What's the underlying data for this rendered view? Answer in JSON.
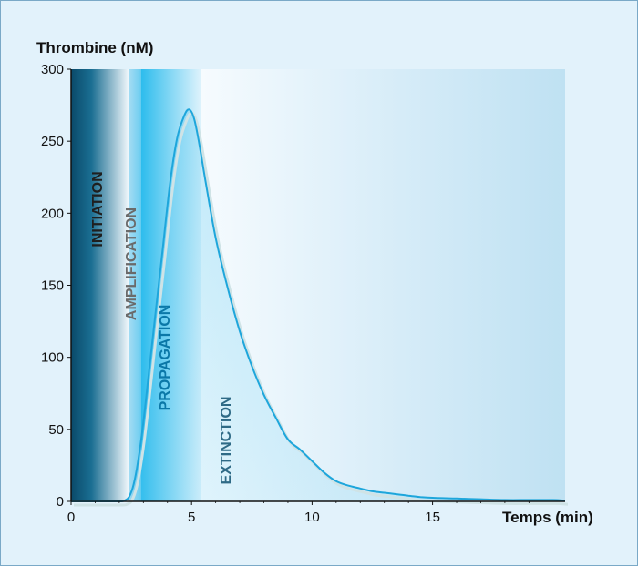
{
  "chart_data": {
    "type": "area",
    "ylabel": "Thrombine (nM)",
    "xlabel": "Temps (min)",
    "xlim": [
      0,
      20.5
    ],
    "ylim": [
      0,
      300
    ],
    "x_ticks": [
      0,
      5,
      10,
      15
    ],
    "y_ticks": [
      0,
      50,
      100,
      150,
      200,
      250,
      300
    ],
    "phases": [
      {
        "label": "INITIATION",
        "start": 0,
        "end": 2.4,
        "color": "#1f1f1f"
      },
      {
        "label": "AMPLIFICATION",
        "start": 2.4,
        "end": 2.9,
        "color": "#6a6a6a"
      },
      {
        "label": "PROPAGATION",
        "start": 2.9,
        "end": 5.4,
        "color": "#0b78a8"
      },
      {
        "label": "EXTINCTION",
        "start": 5.4,
        "end": 20.5,
        "color": "#2e6a86"
      }
    ],
    "series": [
      {
        "color": "#1ea6db",
        "x": [
          0,
          1,
          2,
          2.2,
          2.4,
          2.6,
          2.8,
          3.0,
          3.2,
          3.5,
          3.8,
          4.1,
          4.4,
          4.7,
          4.9,
          5.1,
          5.3,
          5.6,
          6.0,
          6.5,
          7.0,
          7.5,
          8.0,
          8.5,
          9.0,
          9.5,
          10.0,
          10.5,
          11.0,
          11.5,
          12.0,
          12.5,
          13.0,
          13.5,
          14.0,
          14.5,
          15.0,
          16.0,
          17.0,
          18.0,
          19.0,
          20.0,
          20.5
        ],
        "y": [
          0,
          0,
          0,
          0.5,
          3,
          12,
          30,
          55,
          85,
          130,
          175,
          220,
          252,
          268,
          272,
          266,
          250,
          220,
          183,
          148,
          118,
          94,
          74,
          58,
          43,
          36,
          28,
          20,
          14,
          11,
          9,
          7,
          6,
          5,
          4,
          3,
          2.5,
          2,
          1.5,
          1,
          1,
          1,
          0.5
        ]
      }
    ]
  }
}
